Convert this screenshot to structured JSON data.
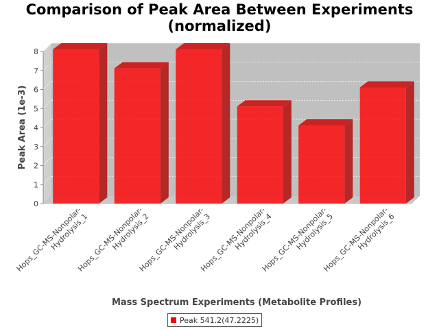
{
  "chart_data": {
    "type": "bar",
    "title_lines": [
      "Comparison of Peak Area Between Experiments",
      "(normalized)"
    ],
    "xlabel": "Mass Spectrum Experiments (Metabolite Profiles)",
    "ylabel": "Peak Area (1e-3)",
    "ylim": [
      0,
      8
    ],
    "yticks": [
      0,
      1,
      2,
      3,
      4,
      5,
      6,
      7,
      8
    ],
    "grid": true,
    "legend_position": "bottom",
    "categories": [
      [
        "Hops_GC-MS-Nonpolar-",
        "Hydrolysis_1"
      ],
      [
        "Hops_GC-MS-Nonpolar-",
        "Hydrolysis_2"
      ],
      [
        "Hops_GC-MS-Nonpolar-",
        "Hydrolysis_3"
      ],
      [
        "Hops_GC-MS-Nonpolar-",
        "Hydrolysis_4"
      ],
      [
        "Hops_GC-MS-Nonpolar-",
        "Hydrolysis_5"
      ],
      [
        "Hops_GC-MS-Nonpolar-",
        "Hydrolysis_6"
      ]
    ],
    "series": [
      {
        "name": "Peak 541.2(47.2225)",
        "values": [
          8,
          7,
          8,
          5,
          4,
          6
        ],
        "color": "#ff0000"
      }
    ]
  }
}
